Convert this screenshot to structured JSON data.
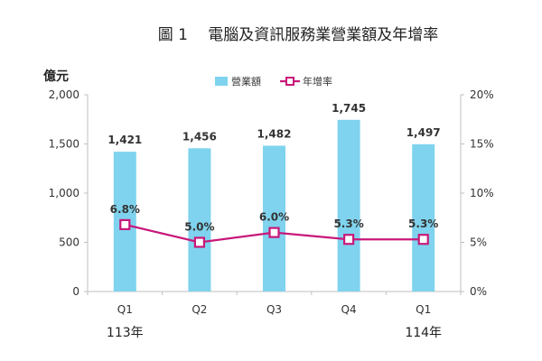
{
  "title": "圖 1　 電腦及資訊服務業營業額及年增率",
  "chart_data": {
    "type": "bar",
    "categories": [
      "Q1",
      "Q2",
      "Q3",
      "Q4",
      "Q1"
    ],
    "year_labels": [
      "113年",
      "",
      "",
      "",
      "114年"
    ],
    "left_unit": "億元",
    "left_axis": {
      "min": 0,
      "max": 2000,
      "ticks": [
        "0",
        "500",
        "1,000",
        "1,500",
        "2,000"
      ]
    },
    "right_axis": {
      "min": 0,
      "max": 20,
      "ticks": [
        "0%",
        "5%",
        "10%",
        "15%",
        "20%"
      ]
    },
    "legend_position": "top-center",
    "series": [
      {
        "name": "營業額",
        "type": "bar",
        "axis": "left",
        "color": "#7fd3ee",
        "values": [
          1421,
          1456,
          1482,
          1745,
          1497
        ],
        "labels": [
          "1,421",
          "1,456",
          "1,482",
          "1,745",
          "1,497"
        ]
      },
      {
        "name": "年增率",
        "type": "line",
        "axis": "right",
        "color": "#c8187a",
        "values": [
          6.8,
          5.0,
          6.0,
          5.3,
          5.3
        ],
        "labels": [
          "6.8%",
          "5.0%",
          "6.0%",
          "5.3%",
          "5.3%"
        ]
      }
    ]
  }
}
